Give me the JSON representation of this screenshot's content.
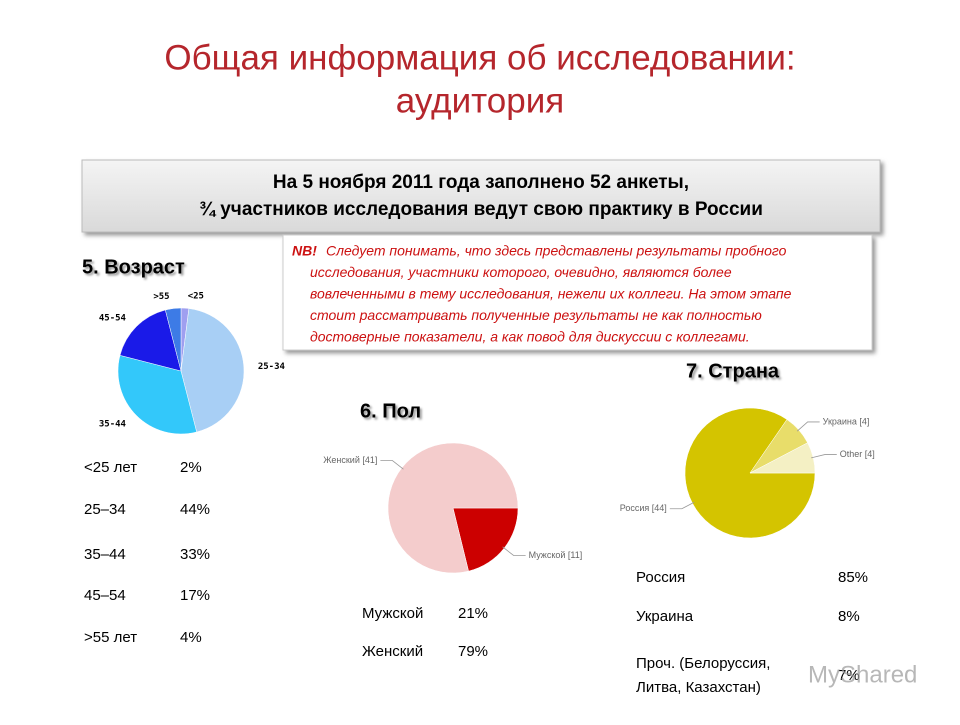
{
  "title": [
    "Общая информация об исследовании:",
    "аудитория"
  ],
  "info": [
    "На 5 ноября 2011 года заполнено 52 анкеты,",
    "¾ участников исследования ведут свою практику в России"
  ],
  "nb": {
    "label": "NB!",
    "lines": [
      "Следует понимать, что здесь представлены результаты пробного",
      "исследования, участники которого, очевидно, являются более",
      "вовлеченными в тему исследования, нежели их коллеги. На этом этапе",
      "стоит рассматривать полученные результаты не как полностью",
      "достоверные показатели, а как повод для дискуссии с коллегами."
    ]
  },
  "chart_data": [
    {
      "type": "pie",
      "title": "5. Возраст",
      "categories": [
        "<25",
        "25-34",
        "35-44",
        "45-54",
        ">55"
      ],
      "values": [
        2,
        44,
        33,
        17,
        4
      ],
      "colors": [
        "#9f9ff0",
        "#a8cff5",
        "#33c8fa",
        "#1a1ae8",
        "#3d7be6"
      ]
    },
    {
      "type": "pie",
      "title": "6. Пол",
      "categories": [
        "Мужской [11]",
        "Женский [41]"
      ],
      "values": [
        11,
        41
      ],
      "colors": [
        "#cc0000",
        "#f4cccc"
      ]
    },
    {
      "type": "pie",
      "title": "7. Страна",
      "categories": [
        "Россия [44]",
        "Украина [4]",
        "Other [4]"
      ],
      "values": [
        44,
        4,
        4
      ],
      "colors": [
        "#d4c400",
        "#e8dd6a",
        "#f4f0c4"
      ]
    }
  ],
  "tables": [
    {
      "rows": [
        [
          "<25 лет",
          "2%"
        ],
        [
          "25–34",
          "44%"
        ],
        [
          "35–44",
          "33%"
        ],
        [
          "45–54",
          "17%"
        ],
        [
          ">55 лет",
          "4%"
        ]
      ]
    },
    {
      "rows": [
        [
          "Мужской",
          "21%"
        ],
        [
          "Женский",
          "79%"
        ]
      ]
    },
    {
      "rows": [
        [
          "Россия",
          "85%"
        ],
        [
          "Украина",
          "8%"
        ],
        [
          [
            "Проч. (Белоруссия,",
            "Литва, Казахстан)"
          ],
          "7%"
        ]
      ]
    }
  ],
  "watermark": "MyShared"
}
